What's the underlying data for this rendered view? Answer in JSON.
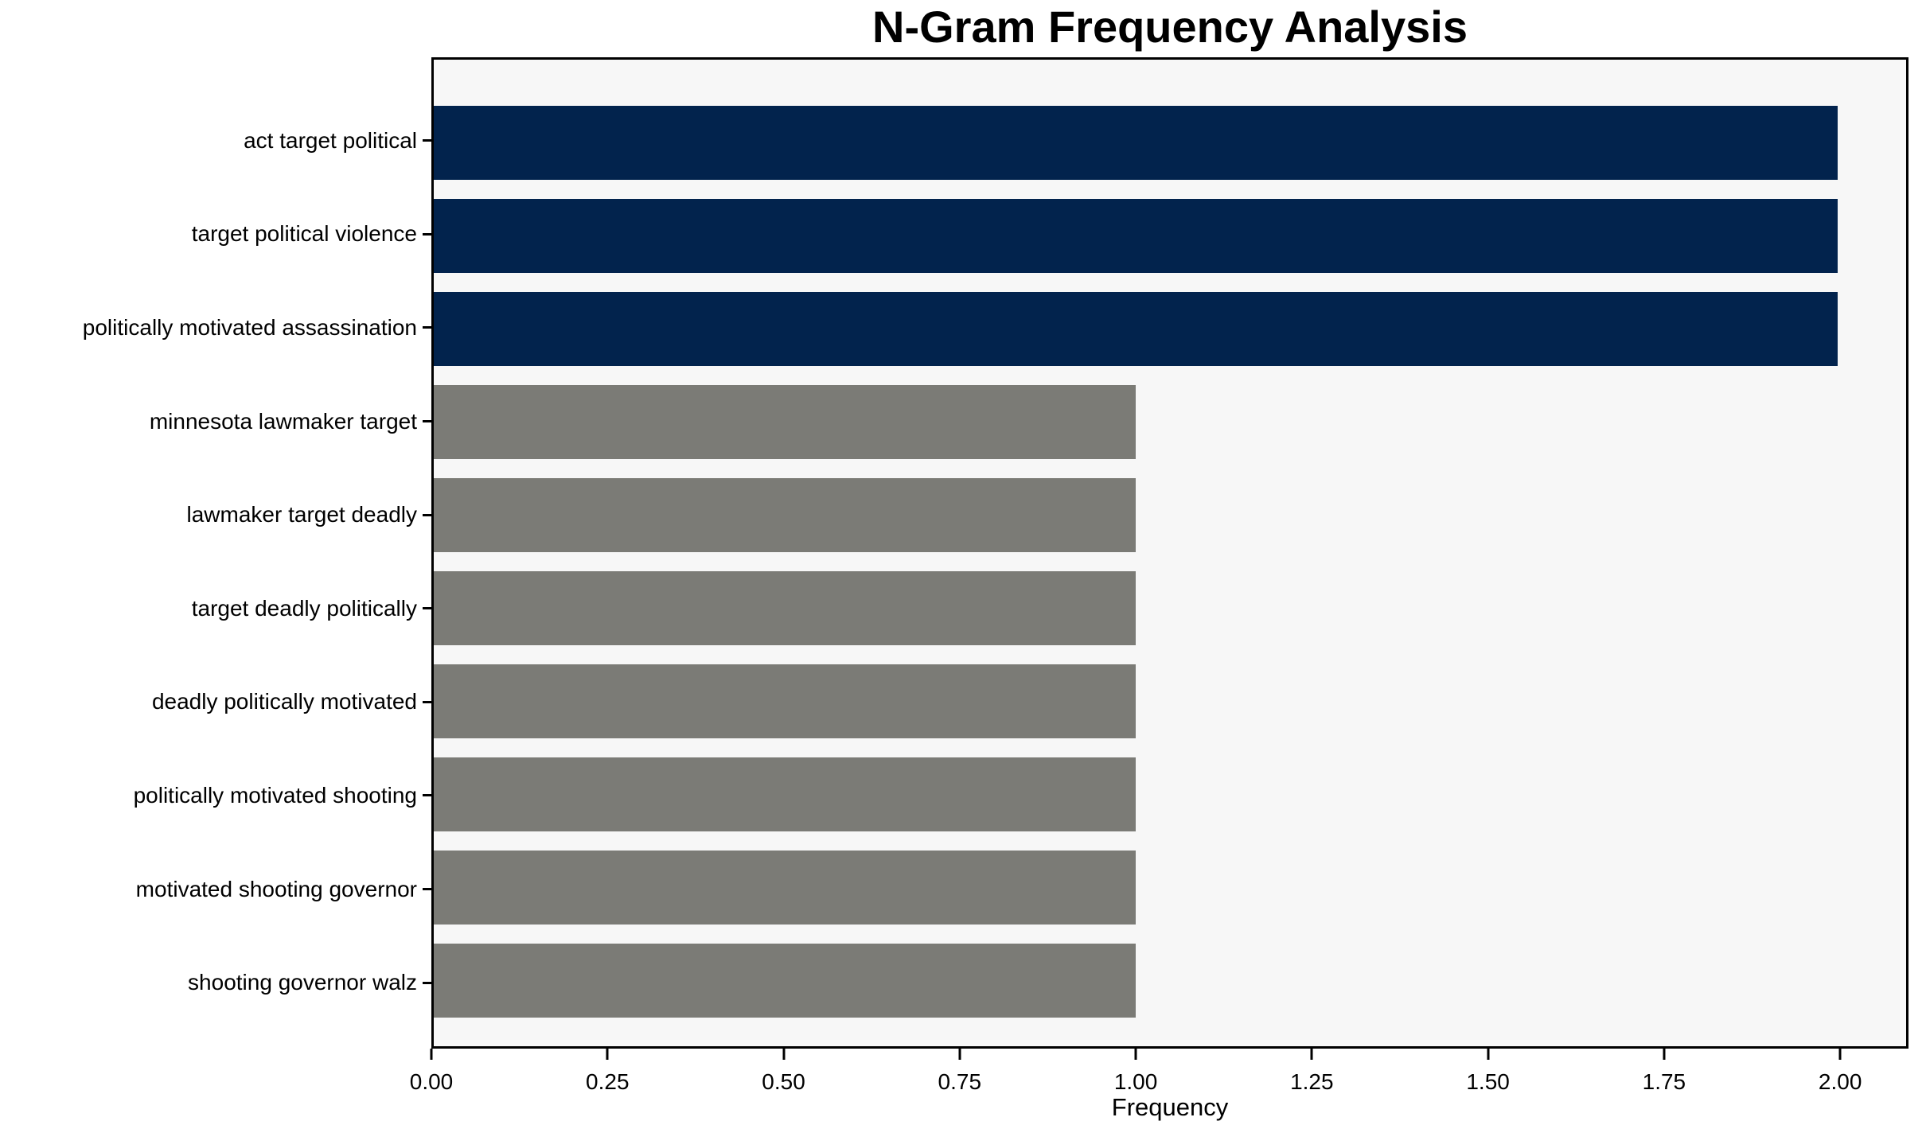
{
  "chart_data": {
    "type": "bar",
    "orientation": "horizontal",
    "title": "N-Gram Frequency Analysis",
    "xlabel": "Frequency",
    "ylabel": "",
    "categories": [
      "act target political",
      "target political violence",
      "politically motivated assassination",
      "minnesota lawmaker target",
      "lawmaker target deadly",
      "target deadly politically",
      "deadly politically motivated",
      "politically motivated shooting",
      "motivated shooting governor",
      "shooting governor walz"
    ],
    "values": [
      2,
      2,
      2,
      1,
      1,
      1,
      1,
      1,
      1,
      1
    ],
    "bar_colors": [
      "#02234d",
      "#02234d",
      "#02234d",
      "#7b7b76",
      "#7b7b76",
      "#7b7b76",
      "#7b7b76",
      "#7b7b76",
      "#7b7b76",
      "#7b7b76"
    ],
    "xtick_labels": [
      "0.00",
      "0.25",
      "0.50",
      "0.75",
      "1.00",
      "1.25",
      "1.50",
      "1.75",
      "2.00"
    ],
    "xtick_values": [
      0,
      0.25,
      0.5,
      0.75,
      1.0,
      1.25,
      1.5,
      1.75,
      2.0
    ],
    "xlim": [
      0,
      2.097
    ],
    "grid": false,
    "legend": "none",
    "colors": {
      "navy": "#02234d",
      "gray": "#7b7b76",
      "plot_background": "#f7f7f7",
      "figure_background": "#ffffff",
      "frame": "#000000",
      "text": "#000000"
    }
  }
}
